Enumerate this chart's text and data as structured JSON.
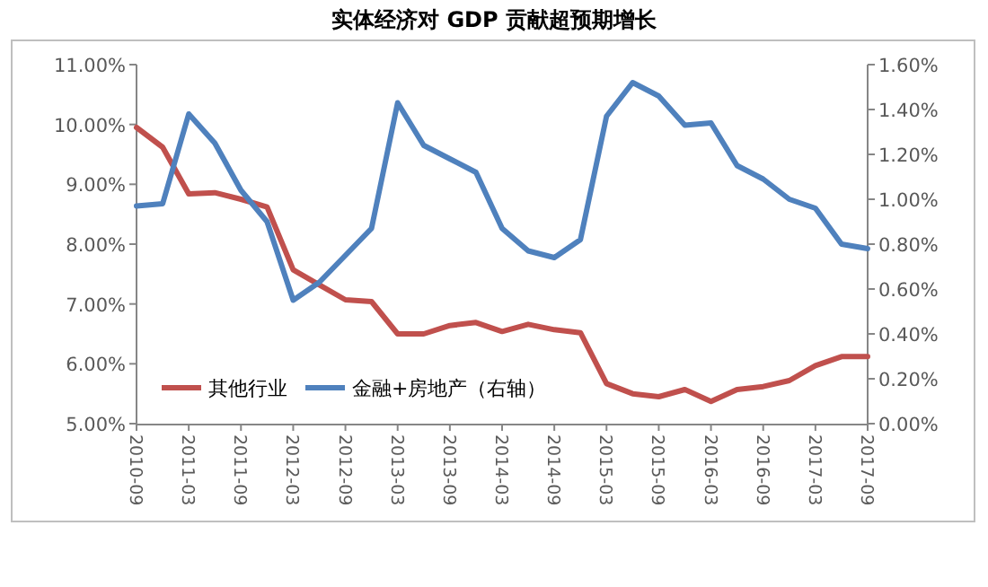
{
  "chart_data": {
    "type": "line",
    "title": "实体经济对 GDP 贡献超预期增长",
    "categories": [
      "2010-09",
      null,
      "2011-03",
      null,
      "2011-09",
      null,
      "2012-03",
      null,
      "2012-09",
      null,
      "2013-03",
      null,
      "2013-09",
      null,
      "2014-03",
      null,
      "2014-09",
      null,
      "2015-03",
      null,
      "2015-09",
      null,
      "2016-03",
      null,
      "2016-09",
      null,
      "2017-03",
      null,
      "2017-09"
    ],
    "series": [
      {
        "name": "其他行业",
        "color": "#c0504d",
        "values": [
          9.95,
          9.62,
          8.84,
          8.86,
          8.75,
          8.62,
          7.57,
          7.32,
          7.07,
          7.04,
          6.5,
          6.5,
          6.64,
          6.69,
          6.54,
          6.66,
          6.57,
          6.52,
          5.67,
          5.5,
          5.45,
          5.57,
          5.37,
          5.57,
          5.62,
          5.72,
          5.97,
          6.12,
          6.12
        ]
      },
      {
        "name": "金融+房地产（右轴）",
        "color": "#4f81bd",
        "axis": "y2",
        "values": [
          0.97,
          0.98,
          1.38,
          1.25,
          1.04,
          0.9,
          0.55,
          0.63,
          0.75,
          0.87,
          1.43,
          1.24,
          1.18,
          1.12,
          0.87,
          0.77,
          0.74,
          0.82,
          1.37,
          1.52,
          1.46,
          1.33,
          1.34,
          1.15,
          1.09,
          1.0,
          0.96,
          0.8,
          0.78
        ]
      }
    ],
    "ylim": [
      5,
      11
    ],
    "yticks": [
      {
        "value": 5,
        "label": "5.00%"
      },
      {
        "value": 6,
        "label": "6.00%"
      },
      {
        "value": 7,
        "label": "7.00%"
      },
      {
        "value": 8,
        "label": "8.00%"
      },
      {
        "value": 9,
        "label": "9.00%"
      },
      {
        "value": 10,
        "label": "10.00%"
      },
      {
        "value": 11,
        "label": "11.00%"
      }
    ],
    "y2lim": [
      0,
      1.6
    ],
    "y2ticks": [
      {
        "value": 0,
        "label": "0.00%"
      },
      {
        "value": 0.2,
        "label": "0.20%"
      },
      {
        "value": 0.4,
        "label": "0.40%"
      },
      {
        "value": 0.6,
        "label": "0.60%"
      },
      {
        "value": 0.8,
        "label": "0.80%"
      },
      {
        "value": 1.0,
        "label": "1.00%"
      },
      {
        "value": 1.2,
        "label": "1.20%"
      },
      {
        "value": 1.4,
        "label": "1.40%"
      },
      {
        "value": 1.6,
        "label": "1.60%"
      }
    ],
    "grid": false,
    "legend": "bottom left",
    "marker": "none",
    "line_style": "solid"
  }
}
